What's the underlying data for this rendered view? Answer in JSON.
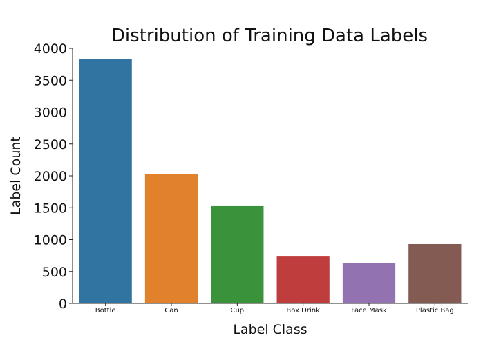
{
  "chart_data": {
    "type": "bar",
    "title": "Distribution of Training Data Labels",
    "xlabel": "Label Class",
    "ylabel": "Label Count",
    "categories": [
      "Bottle",
      "Can",
      "Cup",
      "Box Drink",
      "Face Mask",
      "Plastic Bag"
    ],
    "values": [
      3830,
      2030,
      1525,
      745,
      630,
      930
    ],
    "colors": [
      "#3274a1",
      "#e1812c",
      "#3a923a",
      "#c03d3e",
      "#9372b2",
      "#845b53"
    ],
    "ylim": [
      0,
      4000
    ],
    "yticks": [
      0,
      500,
      1000,
      1500,
      2000,
      2500,
      3000,
      3500,
      4000
    ],
    "grid": false,
    "legend": "none"
  }
}
